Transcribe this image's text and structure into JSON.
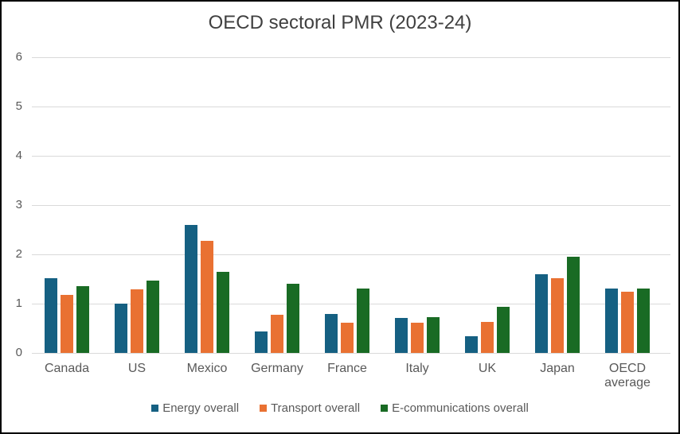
{
  "chart_data": {
    "type": "bar",
    "title": "OECD sectoral PMR (2023-24)",
    "categories": [
      "Canada",
      "US",
      "Mexico",
      "Germany",
      "France",
      "Italy",
      "UK",
      "Japan",
      "OECD average"
    ],
    "series": [
      {
        "name": "Energy overall",
        "color": "#156082",
        "values": [
          1.52,
          1.0,
          2.59,
          0.44,
          0.79,
          0.71,
          0.34,
          1.59,
          1.31
        ]
      },
      {
        "name": "Transport overall",
        "color": "#E97132",
        "values": [
          1.18,
          1.29,
          2.27,
          0.77,
          0.62,
          0.62,
          0.63,
          1.51,
          1.25
        ]
      },
      {
        "name": "E-communications overall",
        "color": "#196B24",
        "values": [
          1.36,
          1.46,
          1.65,
          1.4,
          1.31,
          0.73,
          0.94,
          1.95,
          1.31
        ]
      }
    ],
    "xlabel": "",
    "ylabel": "",
    "ylim": [
      0,
      6
    ],
    "yticks": [
      0,
      1,
      2,
      3,
      4,
      5,
      6
    ],
    "grid": true,
    "legend_position": "bottom"
  },
  "colors": {
    "gridline": "#D9D9D9",
    "axis_text": "#595959",
    "title_text": "#404040",
    "border": "#000000",
    "background": "#FFFFFF"
  }
}
